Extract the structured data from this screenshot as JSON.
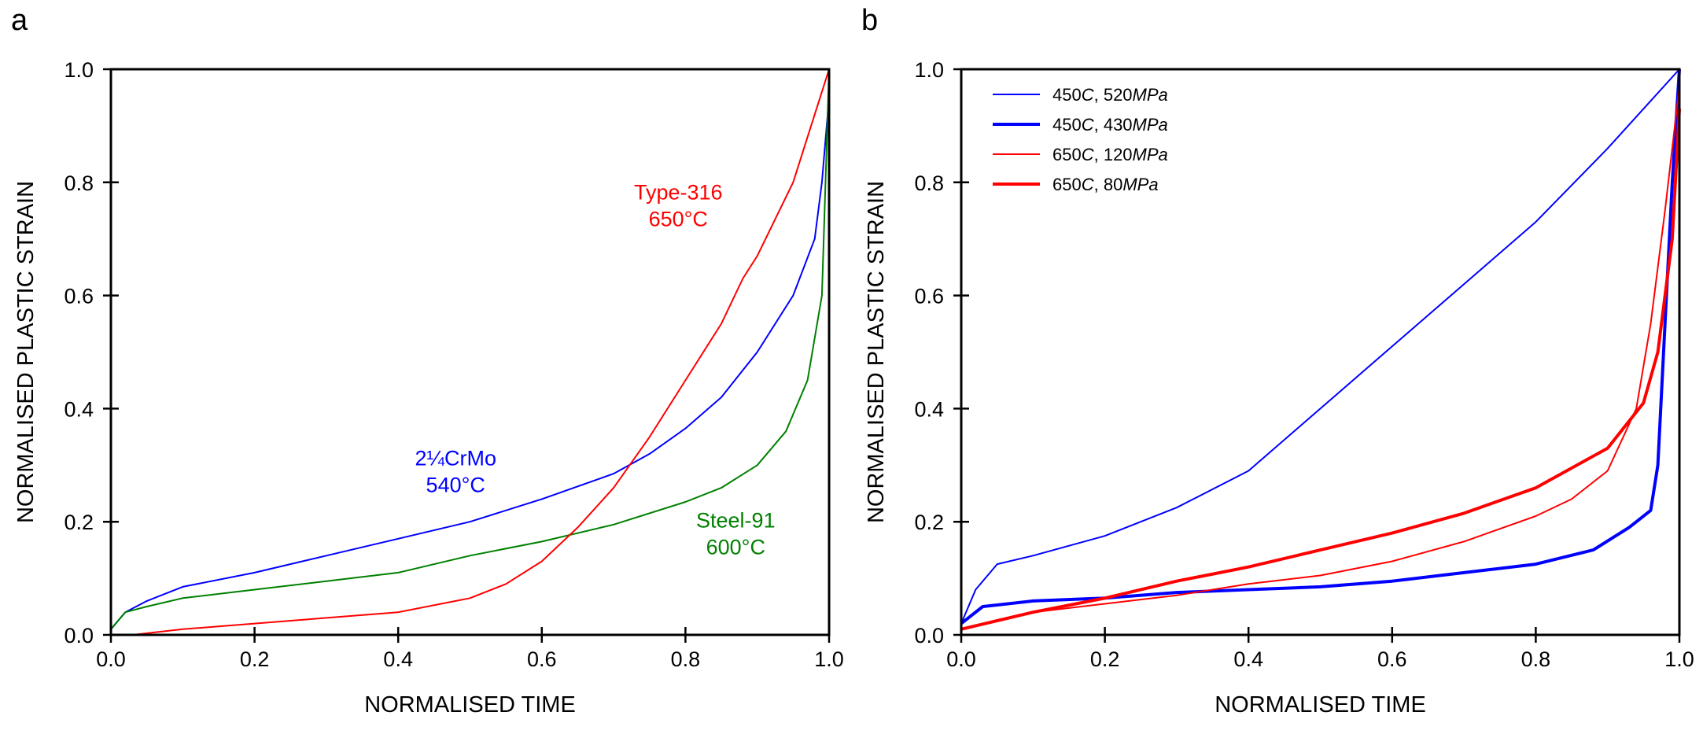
{
  "chart_data": [
    {
      "panel_label": "a",
      "type": "line",
      "xlabel": "NORMALISED TIME",
      "ylabel": "NORMALISED PLASTIC STRAIN",
      "xlim": [
        0,
        1
      ],
      "ylim": [
        0,
        1
      ],
      "xticks": [
        "0.0",
        "0.2",
        "0.4",
        "0.6",
        "0.8",
        "1.0"
      ],
      "yticks": [
        "0.0",
        "0.2",
        "0.4",
        "0.6",
        "0.8",
        "1.0"
      ],
      "grid": false,
      "series": [
        {
          "name": "2¼CrMo",
          "annotation": [
            "2¼CrMo",
            "540°C"
          ],
          "color": "#0000ff",
          "width": 2,
          "x": [
            0,
            0.02,
            0.05,
            0.1,
            0.2,
            0.3,
            0.4,
            0.5,
            0.6,
            0.7,
            0.75,
            0.8,
            0.85,
            0.9,
            0.95,
            0.98,
            0.99,
            1.0
          ],
          "y": [
            0.01,
            0.04,
            0.06,
            0.085,
            0.11,
            0.14,
            0.17,
            0.2,
            0.24,
            0.285,
            0.32,
            0.365,
            0.42,
            0.5,
            0.6,
            0.7,
            0.8,
            0.95
          ]
        },
        {
          "name": "Steel-91",
          "annotation": [
            "Steel-91",
            "600°C"
          ],
          "color": "#008000",
          "width": 2,
          "x": [
            0,
            0.02,
            0.05,
            0.1,
            0.2,
            0.3,
            0.4,
            0.5,
            0.6,
            0.7,
            0.8,
            0.85,
            0.9,
            0.94,
            0.97,
            0.99,
            1.0
          ],
          "y": [
            0.01,
            0.04,
            0.05,
            0.065,
            0.08,
            0.095,
            0.11,
            0.14,
            0.165,
            0.195,
            0.235,
            0.26,
            0.3,
            0.36,
            0.45,
            0.6,
            1.0
          ]
        },
        {
          "name": "Type-316",
          "annotation": [
            "Type-316",
            "650°C"
          ],
          "color": "#ff0000",
          "width": 2,
          "x": [
            0.03,
            0.1,
            0.2,
            0.3,
            0.4,
            0.5,
            0.55,
            0.6,
            0.65,
            0.7,
            0.75,
            0.8,
            0.85,
            0.88,
            0.9,
            0.95,
            1.0
          ],
          "y": [
            0.0,
            0.01,
            0.02,
            0.03,
            0.04,
            0.065,
            0.09,
            0.13,
            0.19,
            0.26,
            0.35,
            0.45,
            0.55,
            0.63,
            0.67,
            0.8,
            1.0
          ]
        }
      ]
    },
    {
      "panel_label": "b",
      "type": "line",
      "xlabel": "NORMALISED TIME",
      "ylabel": "NORMALISED PLASTIC STRAIN",
      "xlim": [
        0,
        1
      ],
      "ylim": [
        0,
        1
      ],
      "xticks": [
        "0.0",
        "0.2",
        "0.4",
        "0.6",
        "0.8",
        "1.0"
      ],
      "yticks": [
        "0.0",
        "0.2",
        "0.4",
        "0.6",
        "0.8",
        "1.0"
      ],
      "grid": false,
      "legend": "top-left",
      "series": [
        {
          "name": "450C, 520MPa",
          "legend_parts": [
            "450",
            "C",
            ", 520",
            "MPa"
          ],
          "color": "#0000ff",
          "width": 2,
          "x": [
            0,
            0.02,
            0.05,
            0.1,
            0.2,
            0.3,
            0.4,
            0.5,
            0.6,
            0.7,
            0.8,
            0.9,
            1.0
          ],
          "y": [
            0.02,
            0.08,
            0.125,
            0.14,
            0.175,
            0.225,
            0.29,
            0.4,
            0.51,
            0.62,
            0.73,
            0.86,
            1.0
          ]
        },
        {
          "name": "450C, 430MPa",
          "legend_parts": [
            "450",
            "C",
            ", 430",
            "MPa"
          ],
          "color": "#0000ff",
          "width": 4,
          "x": [
            0,
            0.03,
            0.1,
            0.2,
            0.3,
            0.4,
            0.5,
            0.6,
            0.7,
            0.8,
            0.88,
            0.93,
            0.96,
            0.97,
            0.98,
            0.99,
            1.0
          ],
          "y": [
            0.02,
            0.05,
            0.06,
            0.065,
            0.075,
            0.08,
            0.085,
            0.095,
            0.11,
            0.125,
            0.15,
            0.19,
            0.22,
            0.3,
            0.55,
            0.8,
            1.0
          ]
        },
        {
          "name": "650C, 120MPa",
          "legend_parts": [
            "650",
            "C",
            ", 120",
            "MPa"
          ],
          "color": "#ff0000",
          "width": 2,
          "x": [
            0,
            0.1,
            0.2,
            0.3,
            0.4,
            0.5,
            0.6,
            0.7,
            0.8,
            0.85,
            0.9,
            0.94,
            0.96,
            0.98,
            1.0
          ],
          "y": [
            0.01,
            0.04,
            0.055,
            0.07,
            0.09,
            0.105,
            0.13,
            0.165,
            0.21,
            0.24,
            0.29,
            0.4,
            0.55,
            0.75,
            0.97
          ]
        },
        {
          "name": "650C, 80MPa",
          "legend_parts": [
            "650",
            "C",
            ", 80",
            "MPa"
          ],
          "color": "#ff0000",
          "width": 4,
          "x": [
            0,
            0.1,
            0.2,
            0.3,
            0.4,
            0.5,
            0.6,
            0.7,
            0.8,
            0.9,
            0.95,
            0.97,
            0.99,
            1.0
          ],
          "y": [
            0.01,
            0.04,
            0.065,
            0.095,
            0.12,
            0.15,
            0.18,
            0.215,
            0.26,
            0.33,
            0.41,
            0.5,
            0.7,
            0.93
          ]
        }
      ]
    }
  ]
}
